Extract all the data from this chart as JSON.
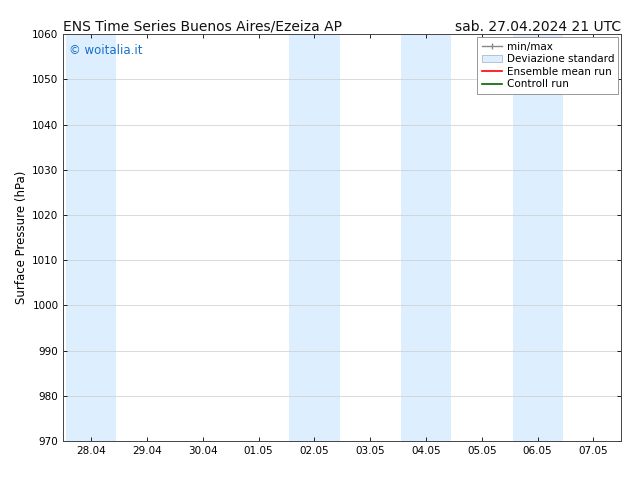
{
  "title_left": "ENS Time Series Buenos Aires/Ezeiza AP",
  "title_right": "sab. 27.04.2024 21 UTC",
  "ylabel": "Surface Pressure (hPa)",
  "ylim": [
    970,
    1060
  ],
  "yticks": [
    970,
    980,
    990,
    1000,
    1010,
    1020,
    1030,
    1040,
    1050,
    1060
  ],
  "xtick_labels": [
    "28.04",
    "29.04",
    "30.04",
    "01.05",
    "02.05",
    "03.05",
    "04.05",
    "05.05",
    "06.05",
    "07.05"
  ],
  "xtick_positions": [
    0,
    1,
    2,
    3,
    4,
    5,
    6,
    7,
    8,
    9
  ],
  "shaded_bands": [
    {
      "xstart": -0.45,
      "xend": 0.45
    },
    {
      "xstart": 3.55,
      "xend": 4.45
    },
    {
      "xstart": 5.55,
      "xend": 6.45
    },
    {
      "xstart": 7.55,
      "xend": 8.45
    }
  ],
  "shade_color": "#ddeeff",
  "watermark_text": "© woitalia.it",
  "watermark_color": "#1a6fcc",
  "background_color": "#ffffff",
  "plot_bg_color": "#ffffff",
  "grid_color": "#cccccc",
  "title_fontsize": 10,
  "tick_fontsize": 7.5,
  "ylabel_fontsize": 8.5,
  "legend_fontsize": 7.5,
  "watermark_fontsize": 8.5
}
